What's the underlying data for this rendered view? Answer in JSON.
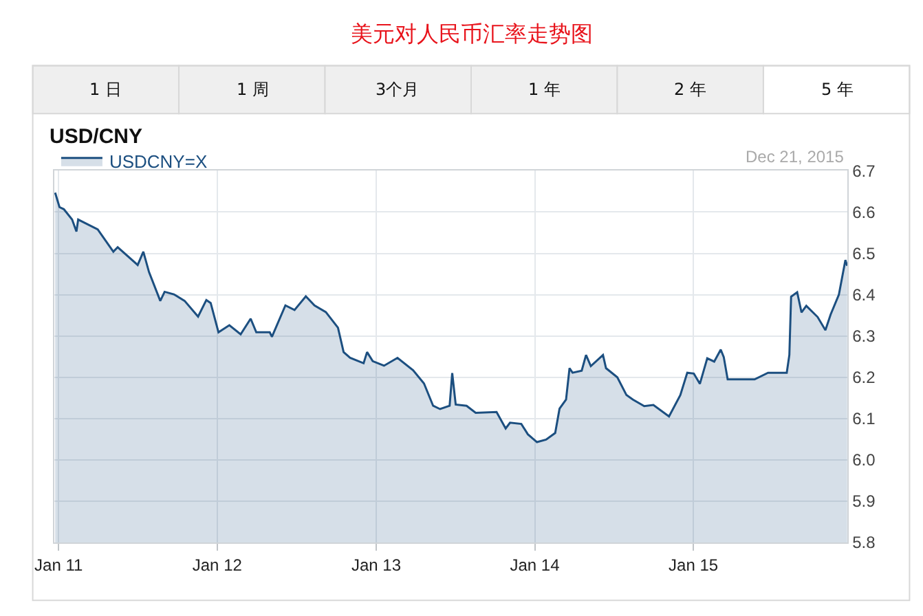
{
  "chart_data": {
    "type": "area",
    "title": "美元对人民币汇率走势图",
    "subtitle": "USD/CNY",
    "annotations": [
      "1 日",
      "1 周",
      "3个月",
      "1 年",
      "2 年",
      "5 年",
      "Dec 21, 2015"
    ],
    "x": [
      "2010-12-24",
      "2011-01-03",
      "2011-01-13",
      "2011-02-01",
      "2011-02-11",
      "2011-02-15",
      "2011-04-01",
      "2011-05-07",
      "2011-05-17",
      "2011-07-02",
      "2011-07-15",
      "2011-07-28",
      "2011-08-23",
      "2011-09-02",
      "2011-09-23",
      "2011-10-18",
      "2011-11-18",
      "2011-12-07",
      "2011-12-17",
      "2012-01-04",
      "2012-01-29",
      "2012-02-24",
      "2012-03-18",
      "2012-03-31",
      "2012-05-01",
      "2012-05-06",
      "2012-06-06",
      "2012-06-27",
      "2012-07-23",
      "2012-08-12",
      "2012-09-07",
      "2012-10-05",
      "2012-10-18",
      "2012-11-02",
      "2012-12-03",
      "2012-12-11",
      "2012-12-24",
      "2013-01-19",
      "2013-02-19",
      "2013-03-27",
      "2013-04-21",
      "2013-05-12",
      "2013-05-28",
      "2013-06-19",
      "2013-06-25",
      "2013-07-03",
      "2013-07-28",
      "2013-08-18",
      "2013-10-05",
      "2013-10-26",
      "2013-11-05",
      "2013-12-01",
      "2013-12-16",
      "2014-01-06",
      "2014-01-27",
      "2014-02-17",
      "2014-02-27",
      "2014-03-14",
      "2014-03-22",
      "2014-03-29",
      "2014-04-19",
      "2014-04-29",
      "2014-05-10",
      "2014-06-07",
      "2014-06-14",
      "2014-07-10",
      "2014-07-31",
      "2014-08-15",
      "2014-09-10",
      "2014-10-01",
      "2014-11-06",
      "2014-12-02",
      "2014-12-18",
      "2015-01-02",
      "2015-01-16",
      "2015-02-02",
      "2015-02-18",
      "2015-03-05",
      "2015-03-12",
      "2015-03-21",
      "2015-04-05",
      "2015-05-22",
      "2015-06-22",
      "2015-08-04",
      "2015-08-10",
      "2015-08-14",
      "2015-08-28",
      "2015-09-07",
      "2015-09-18",
      "2015-10-14",
      "2015-11-01",
      "2015-11-13",
      "2015-12-02",
      "2015-12-17",
      "2015-12-21"
    ],
    "series": [
      {
        "name": "USDCNY=X",
        "color": "#1c4f80",
        "values": [
          6.647,
          6.612,
          6.607,
          6.582,
          6.553,
          6.582,
          6.558,
          6.504,
          6.515,
          6.472,
          6.504,
          6.455,
          6.385,
          6.407,
          6.401,
          6.385,
          6.347,
          6.387,
          6.38,
          6.309,
          6.326,
          6.304,
          6.342,
          6.309,
          6.309,
          6.298,
          6.374,
          6.363,
          6.396,
          6.374,
          6.358,
          6.32,
          6.261,
          6.247,
          6.234,
          6.261,
          6.239,
          6.228,
          6.247,
          6.217,
          6.185,
          6.131,
          6.123,
          6.131,
          6.21,
          6.134,
          6.131,
          6.114,
          6.116,
          6.076,
          6.09,
          6.087,
          6.062,
          6.043,
          6.049,
          6.065,
          6.124,
          6.146,
          6.222,
          6.211,
          6.216,
          6.254,
          6.227,
          6.254,
          6.222,
          6.2,
          6.157,
          6.146,
          6.13,
          6.133,
          6.105,
          6.157,
          6.211,
          6.209,
          6.184,
          6.246,
          6.238,
          6.267,
          6.249,
          6.195,
          6.195,
          6.195,
          6.211,
          6.211,
          6.254,
          6.395,
          6.406,
          6.357,
          6.373,
          6.346,
          6.314,
          6.352,
          6.4,
          6.484,
          6.47
        ]
      }
    ],
    "xlim": [
      "2010-12-22",
      "2015-12-22"
    ],
    "xticks": [
      {
        "value": "2011-01-01",
        "label": "Jan 11"
      },
      {
        "value": "2012-01-01",
        "label": "Jan 12"
      },
      {
        "value": "2013-01-01",
        "label": "Jan 13"
      },
      {
        "value": "2014-01-01",
        "label": "Jan 14"
      },
      {
        "value": "2015-01-01",
        "label": "Jan 15"
      }
    ],
    "ylim": [
      5.8,
      6.7
    ],
    "yticks": [
      5.8,
      5.9,
      {
        "value": 6.0,
        "label": "6.0"
      },
      6.1,
      6.2,
      6.3,
      6.4,
      6.5,
      6.6,
      6.7
    ],
    "grid": true,
    "legend": "top left",
    "marker": "none",
    "line_style": "solid"
  }
}
